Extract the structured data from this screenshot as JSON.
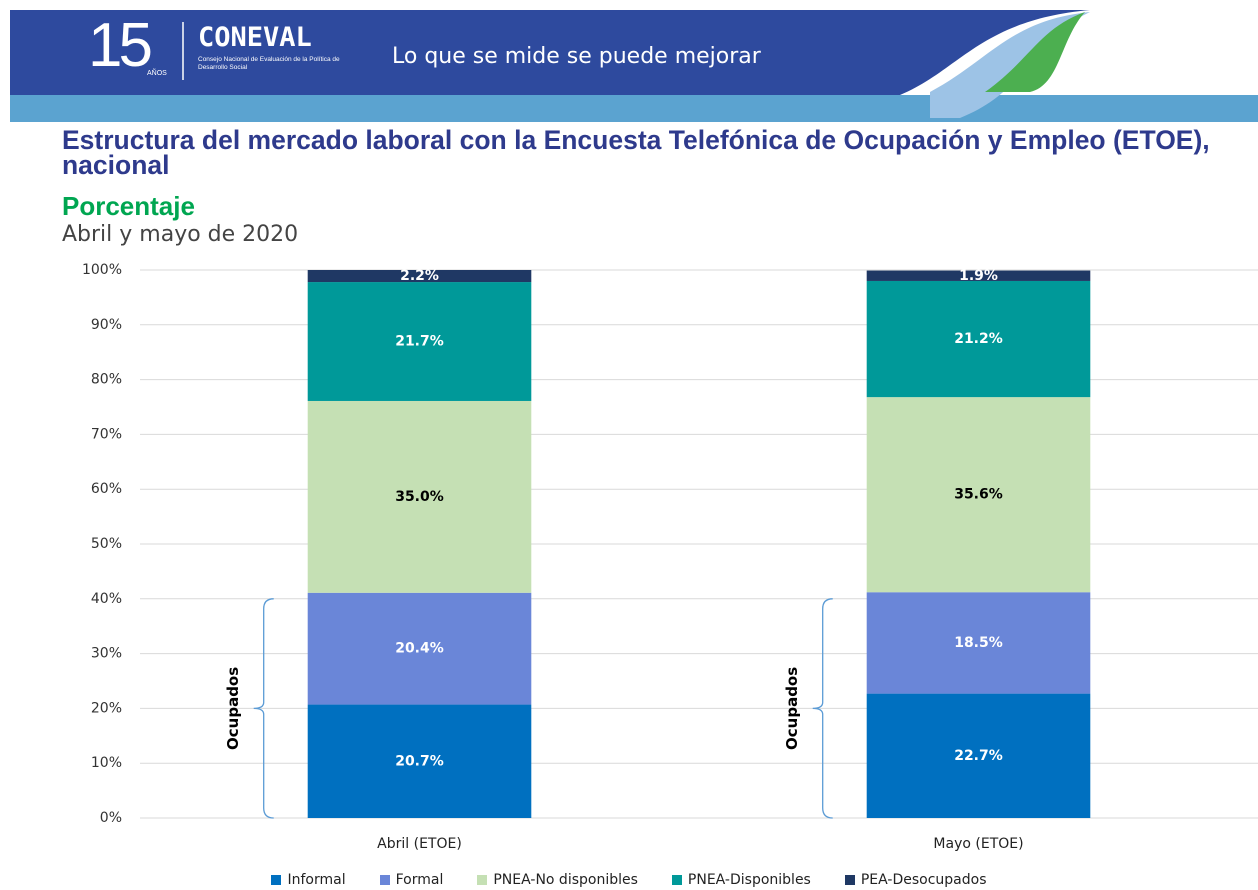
{
  "header": {
    "logo_number": "15",
    "logo_years": "AÑOS",
    "brand": "CONEVAL",
    "brand_subtitle": "Consejo Nacional de Evaluación de la Política de Desarrollo Social",
    "slogan": "Lo que se mide se puede mejorar"
  },
  "chart_data": {
    "type": "stacked_bar",
    "title": "Estructura del mercado laboral con la Encuesta Telefónica de Ocupación y Empleo (ETOE), nacional",
    "subtitle": "Porcentaje",
    "period": "Abril y mayo de 2020",
    "categories": [
      "Abril (ETOE)",
      "Mayo (ETOE)"
    ],
    "series": [
      {
        "name": "Informal",
        "color": "#0070c0",
        "values": [
          20.7,
          22.7
        ],
        "value_labels": [
          "20.7%",
          "22.7%"
        ]
      },
      {
        "name": "Formal",
        "color": "#6a86d8",
        "values": [
          20.4,
          18.5
        ],
        "value_labels": [
          "20.4%",
          "18.5%"
        ]
      },
      {
        "name": "PNEA-No disponibles",
        "color": "#c5e0b4",
        "values": [
          35.0,
          35.6
        ],
        "value_labels": [
          "35.0%",
          "35.6%"
        ]
      },
      {
        "name": "PNEA-Disponibles",
        "color": "#009999",
        "values": [
          21.7,
          21.2
        ],
        "value_labels": [
          "21.7%",
          "21.2%"
        ]
      },
      {
        "name": "PEA-Desocupados",
        "color": "#1f3864",
        "values": [
          2.2,
          1.9
        ],
        "value_labels": [
          "2.2%",
          "1.9%"
        ]
      }
    ],
    "annotations": [
      "Ocupados",
      "Ocupados"
    ],
    "ylim": [
      0,
      100
    ],
    "yticks": [
      {
        "value": 0,
        "label": "0%"
      },
      {
        "value": 10,
        "label": "10%"
      },
      {
        "value": 20,
        "label": "20%"
      },
      {
        "value": 30,
        "label": "30%"
      },
      {
        "value": 40,
        "label": "40%"
      },
      {
        "value": 50,
        "label": "50%"
      },
      {
        "value": 60,
        "label": "60%"
      },
      {
        "value": 70,
        "label": "70%"
      },
      {
        "value": 80,
        "label": "80%"
      },
      {
        "value": 90,
        "label": "90%"
      },
      {
        "value": 100,
        "label": "100%"
      }
    ],
    "grid": true,
    "legend": "bottom"
  }
}
